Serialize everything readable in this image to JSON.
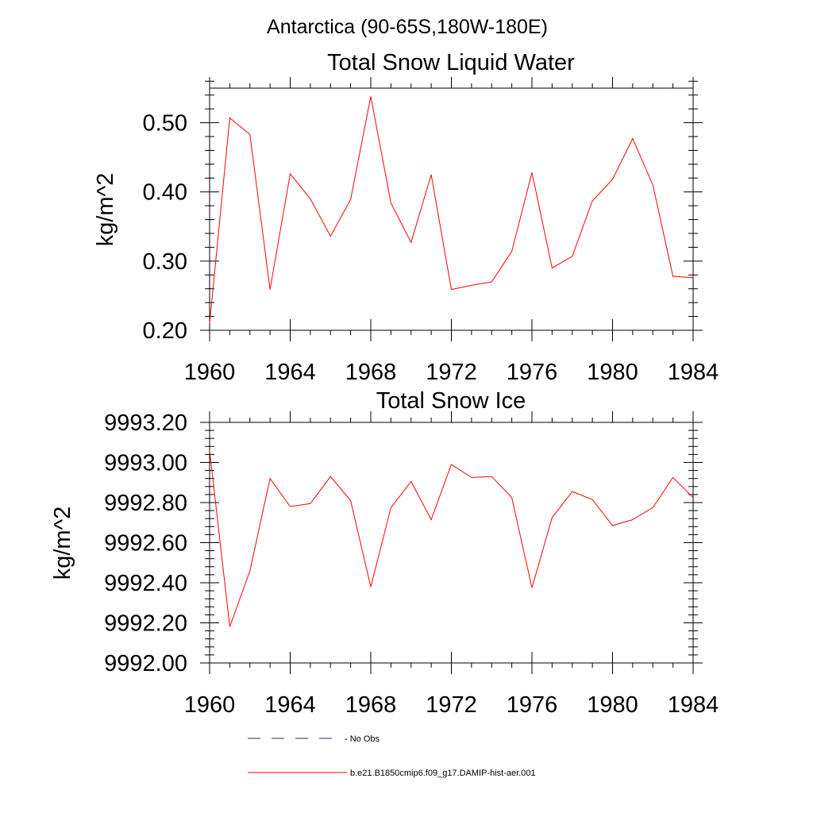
{
  "figure": {
    "title": "Antarctica (90-65S,180W-180E)"
  },
  "legend": {
    "entries": [
      {
        "label": "- No Obs",
        "style": "dashed",
        "color": "#2c2c6c"
      },
      {
        "label": "b.e21.B1850cmip6.f09_g17.DAMIP-hist-aer.001",
        "style": "solid",
        "color": "#ff0000"
      }
    ]
  },
  "chart_data": [
    {
      "type": "line",
      "title": "Total Snow Liquid Water",
      "xlabel": "",
      "ylabel": "kg/m^2",
      "xlim": [
        1960,
        1984
      ],
      "ylim": [
        0.2,
        0.55
      ],
      "x_ticks": [
        1960,
        1964,
        1968,
        1972,
        1976,
        1980,
        1984
      ],
      "x_tick_labels": [
        "1960",
        "1964",
        "1968",
        "1972",
        "1976",
        "1980",
        "1984"
      ],
      "y_ticks": [
        0.2,
        0.3,
        0.4,
        0.5
      ],
      "y_tick_labels": [
        "0.20",
        "0.30",
        "0.40",
        "0.50"
      ],
      "y_minor_step": 0.02,
      "x_minor_step": 1,
      "grid": false,
      "series": [
        {
          "name": "b.e21.B1850cmip6.f09_g17.DAMIP-hist-aer.001",
          "color": "#ff0000",
          "x": [
            1960,
            1961,
            1962,
            1963,
            1964,
            1965,
            1966,
            1967,
            1968,
            1969,
            1970,
            1971,
            1972,
            1973,
            1974,
            1975,
            1976,
            1977,
            1978,
            1979,
            1980,
            1981,
            1982,
            1983,
            1984
          ],
          "values": [
            0.21,
            0.507,
            0.483,
            0.259,
            0.426,
            0.39,
            0.336,
            0.389,
            0.538,
            0.384,
            0.327,
            0.425,
            0.259,
            0.265,
            0.27,
            0.314,
            0.428,
            0.29,
            0.307,
            0.387,
            0.418,
            0.477,
            0.41,
            0.278,
            0.276
          ]
        }
      ]
    },
    {
      "type": "line",
      "title": "Total Snow Ice",
      "xlabel": "",
      "ylabel": "kg/m^2",
      "xlim": [
        1960,
        1984
      ],
      "ylim": [
        9992.0,
        9993.2
      ],
      "x_ticks": [
        1960,
        1964,
        1968,
        1972,
        1976,
        1980,
        1984
      ],
      "x_tick_labels": [
        "1960",
        "1964",
        "1968",
        "1972",
        "1976",
        "1980",
        "1984"
      ],
      "y_ticks": [
        9992.0,
        9992.2,
        9992.4,
        9992.6,
        9992.8,
        9993.0,
        9993.2
      ],
      "y_tick_labels": [
        "9992.00",
        "9992.20",
        "9992.40",
        "9992.60",
        "9992.80",
        "9993.00",
        "9993.20"
      ],
      "y_minor_step": 0.04,
      "x_minor_step": 1,
      "grid": false,
      "series": [
        {
          "name": "b.e21.B1850cmip6.f09_g17.DAMIP-hist-aer.001",
          "color": "#ff0000",
          "x": [
            1960,
            1961,
            1962,
            1963,
            1964,
            1965,
            1966,
            1967,
            1968,
            1969,
            1970,
            1971,
            1972,
            1973,
            1974,
            1975,
            1976,
            1977,
            1978,
            1979,
            1980,
            1981,
            1982,
            1983,
            1984
          ],
          "values": [
            9993.06,
            9992.18,
            9992.46,
            9992.92,
            9992.78,
            9992.795,
            9992.93,
            9992.81,
            9992.38,
            9992.775,
            9992.905,
            9992.715,
            9992.99,
            9992.925,
            9992.93,
            9992.825,
            9992.375,
            9992.725,
            9992.855,
            9992.815,
            9992.685,
            9992.715,
            9992.775,
            9992.925,
            9992.825
          ]
        }
      ]
    }
  ]
}
